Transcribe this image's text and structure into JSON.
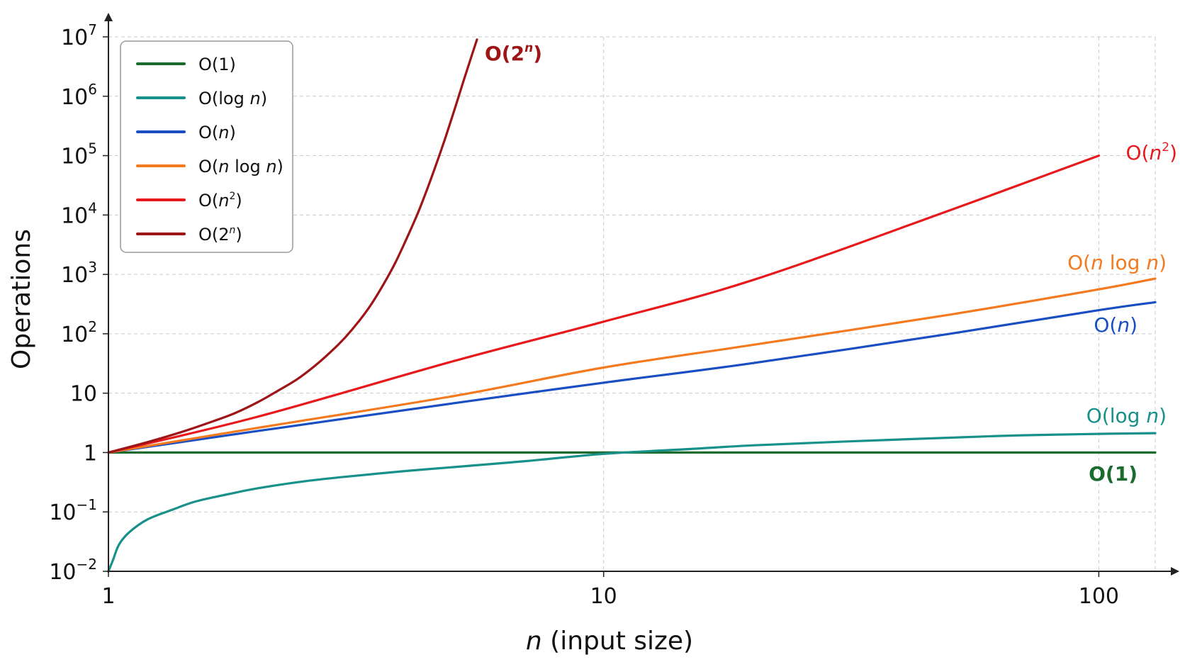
{
  "chart_data": {
    "type": "line",
    "title": "",
    "xlabel": "n (input size)",
    "xlabel_parts": [
      "n",
      " (input size)"
    ],
    "ylabel": "Operations",
    "x_scale": "log",
    "y_scale": "log",
    "xlim": [
      1,
      130
    ],
    "ylim": [
      0.01,
      10000000
    ],
    "grid": true,
    "legend_position": "top-left",
    "x_ticks": [
      {
        "value": 1,
        "label": "1"
      },
      {
        "value": 10,
        "label": "10"
      },
      {
        "value": 100,
        "label": "100"
      }
    ],
    "y_ticks": [
      {
        "value": 0.01,
        "base": "10",
        "exp": "−2"
      },
      {
        "value": 0.1,
        "base": "10",
        "exp": "−1"
      },
      {
        "value": 1,
        "base": "1",
        "exp": ""
      },
      {
        "value": 10,
        "base": "10",
        "exp": ""
      },
      {
        "value": 100,
        "base": "10",
        "exp": "2"
      },
      {
        "value": 1000,
        "base": "10",
        "exp": "3"
      },
      {
        "value": 10000,
        "base": "10",
        "exp": "4"
      },
      {
        "value": 100000,
        "base": "10",
        "exp": "5"
      },
      {
        "value": 1000000,
        "base": "10",
        "exp": "6"
      },
      {
        "value": 10000000,
        "base": "10",
        "exp": "7"
      }
    ],
    "series": [
      {
        "name": "O(1)",
        "label_parts": [
          {
            "t": "O(1)",
            "s": ""
          }
        ],
        "color": "#1b6b2f",
        "bold": true,
        "x": [
          1,
          2,
          5,
          10,
          20,
          50,
          100,
          130
        ],
        "y": [
          1,
          1,
          1,
          1,
          1,
          1,
          1,
          1
        ]
      },
      {
        "name": "O(log n)",
        "label_parts": [
          {
            "t": "O(log ",
            "s": ""
          },
          {
            "t": "n",
            "s": "i"
          },
          {
            "t": ")",
            "s": ""
          }
        ],
        "color": "#17918a",
        "bold": false,
        "x": [
          1.0,
          1.02,
          1.05,
          1.1,
          1.2,
          1.35,
          1.5,
          1.75,
          2,
          2.5,
          3,
          4,
          5,
          7,
          10,
          15,
          20,
          30,
          50,
          70,
          100,
          130
        ],
        "y": [
          0.01,
          0.015,
          0.028,
          0.045,
          0.075,
          0.11,
          0.15,
          0.2,
          0.25,
          0.33,
          0.39,
          0.49,
          0.57,
          0.72,
          0.95,
          1.15,
          1.32,
          1.52,
          1.78,
          1.95,
          2.06,
          2.12
        ]
      },
      {
        "name": "O(n)",
        "label_parts": [
          {
            "t": "O(",
            "s": ""
          },
          {
            "t": "n",
            "s": "i"
          },
          {
            "t": ")",
            "s": ""
          }
        ],
        "color": "#1a4fc4",
        "bold": false,
        "x": [
          1,
          2,
          5,
          10,
          20,
          50,
          100,
          130
        ],
        "y": [
          1,
          2.3,
          6.8,
          15,
          32,
          100,
          250,
          340
        ]
      },
      {
        "name": "O(n log n)",
        "label_parts": [
          {
            "t": "O(",
            "s": ""
          },
          {
            "t": "n",
            "s": "i"
          },
          {
            "t": " log ",
            "s": ""
          },
          {
            "t": "n",
            "s": "i"
          },
          {
            "t": ")",
            "s": ""
          }
        ],
        "color": "#f47a1f",
        "bold": false,
        "x": [
          1,
          2,
          5,
          10,
          20,
          50,
          100,
          130
        ],
        "y": [
          1,
          2.6,
          9,
          27,
          65,
          210,
          560,
          850
        ]
      },
      {
        "name": "O(n²)",
        "label_parts": [
          {
            "t": "O(",
            "s": ""
          },
          {
            "t": "n",
            "s": "i"
          },
          {
            "t": "2",
            "s": "sup"
          },
          {
            "t": ")",
            "s": ""
          }
        ],
        "color": "#e8191c",
        "bold": false,
        "x": [
          1,
          2,
          5,
          10,
          20,
          50,
          100
        ],
        "y": [
          1,
          4,
          35,
          160,
          800,
          12000,
          100000
        ]
      },
      {
        "name": "O(2ⁿ)",
        "label_parts": [
          {
            "t": "O(2",
            "s": ""
          },
          {
            "t": "n",
            "s": "supi"
          },
          {
            "t": ")",
            "s": ""
          }
        ],
        "color": "#9e1518",
        "bold": true,
        "x": [
          1,
          1.2,
          1.4,
          1.6,
          1.8,
          2.0,
          2.2,
          2.4,
          2.6,
          2.8,
          3.0,
          3.2,
          3.4,
          3.6,
          3.8,
          4.0,
          4.2,
          4.4,
          4.6,
          4.8,
          5.0,
          5.2,
          5.4,
          5.55
        ],
        "y": [
          1,
          1.5,
          2.2,
          3.2,
          4.6,
          7,
          11,
          17,
          28,
          48,
          85,
          160,
          320,
          700,
          1600,
          4000,
          10000,
          27000,
          75000,
          210000,
          600000,
          1700000,
          4500000,
          9000000
        ]
      }
    ]
  }
}
